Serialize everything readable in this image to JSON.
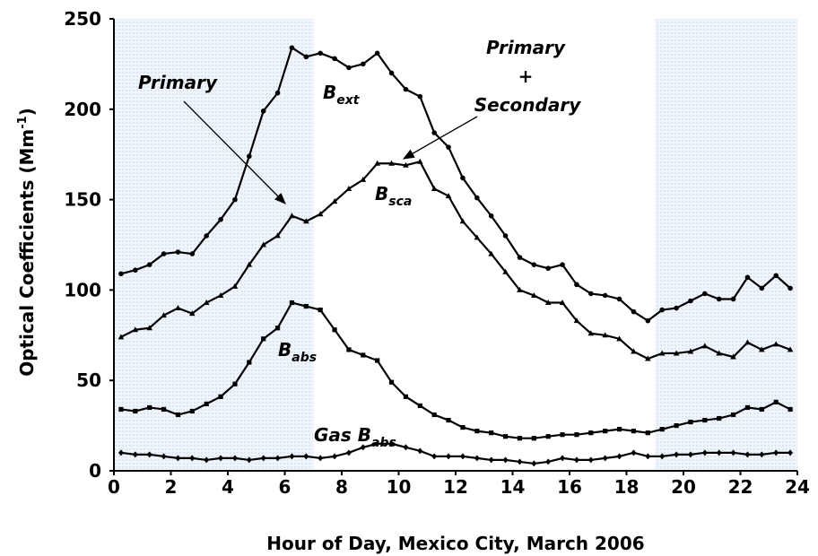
{
  "chart_data": {
    "type": "line",
    "xlabel": "Hour of Day, Mexico City, March 2006",
    "ylabel": [
      "Optical Coefficients (Mm",
      "-1",
      ")"
    ],
    "annotations": [
      "Primary",
      "Primary",
      "+",
      "Secondary"
    ],
    "x": [
      0.25,
      0.75,
      1.25,
      1.75,
      2.25,
      2.75,
      3.25,
      3.75,
      4.25,
      4.75,
      5.25,
      5.75,
      6.25,
      6.75,
      7.25,
      7.75,
      8.25,
      8.75,
      9.25,
      9.75,
      10.25,
      10.75,
      11.25,
      11.75,
      12.25,
      12.75,
      13.25,
      13.75,
      14.25,
      14.75,
      15.25,
      15.75,
      16.25,
      16.75,
      17.25,
      17.75,
      18.25,
      18.75,
      19.25,
      19.75,
      20.25,
      20.75,
      21.25,
      21.75,
      22.25,
      22.75,
      23.25,
      23.75
    ],
    "series": [
      {
        "label": "B",
        "label_sub": "ext",
        "marker": "circle",
        "color": "#000000",
        "values": [
          109,
          111,
          114,
          120,
          121,
          120,
          130,
          139,
          150,
          174,
          199,
          209,
          234,
          229,
          231,
          228,
          223,
          225,
          231,
          220,
          211,
          207,
          187,
          179,
          162,
          151,
          141,
          130,
          118,
          114,
          112,
          114,
          103,
          98,
          97,
          95,
          88,
          83,
          89,
          90,
          94,
          98,
          95,
          95,
          107,
          101,
          108,
          101
        ]
      },
      {
        "label": "B",
        "label_sub": "sca",
        "marker": "triangle",
        "color": "#000000",
        "values": [
          74,
          78,
          79,
          86,
          90,
          87,
          93,
          97,
          102,
          114,
          125,
          130,
          141,
          138,
          142,
          149,
          156,
          161,
          170,
          170,
          169,
          171,
          156,
          152,
          138,
          129,
          120,
          110,
          100,
          97,
          93,
          93,
          83,
          76,
          75,
          73,
          66,
          62,
          65,
          65,
          66,
          69,
          65,
          63,
          71,
          67,
          70,
          67
        ]
      },
      {
        "label": "B",
        "label_sub": "abs",
        "marker": "square",
        "color": "#000000",
        "values": [
          34,
          33,
          35,
          34,
          31,
          33,
          37,
          41,
          48,
          60,
          73,
          79,
          93,
          91,
          89,
          78,
          67,
          64,
          61,
          49,
          41,
          36,
          31,
          28,
          24,
          22,
          21,
          19,
          18,
          18,
          19,
          20,
          20,
          21,
          22,
          23,
          22,
          21,
          23,
          25,
          27,
          28,
          29,
          31,
          35,
          34,
          38,
          34
        ]
      },
      {
        "label": "Gas B",
        "label_sub": "abs",
        "marker": "diamond",
        "color": "#000000",
        "values": [
          10,
          9,
          9,
          8,
          7,
          7,
          6,
          7,
          7,
          6,
          7,
          7,
          8,
          8,
          7,
          8,
          10,
          13,
          15,
          15,
          13,
          11,
          8,
          8,
          8,
          7,
          6,
          6,
          5,
          4,
          5,
          7,
          6,
          6,
          7,
          8,
          10,
          8,
          8,
          9,
          9,
          10,
          10,
          10,
          9,
          9,
          10,
          10
        ]
      }
    ],
    "shaded_x": [
      [
        0,
        7
      ],
      [
        19,
        24
      ]
    ],
    "xlim": [
      0,
      24
    ],
    "xticks": [
      0,
      2,
      4,
      6,
      8,
      10,
      12,
      14,
      16,
      18,
      20,
      22,
      24
    ],
    "ylim": [
      0,
      250
    ],
    "yticks": [
      0,
      50,
      100,
      150,
      200,
      250
    ]
  }
}
